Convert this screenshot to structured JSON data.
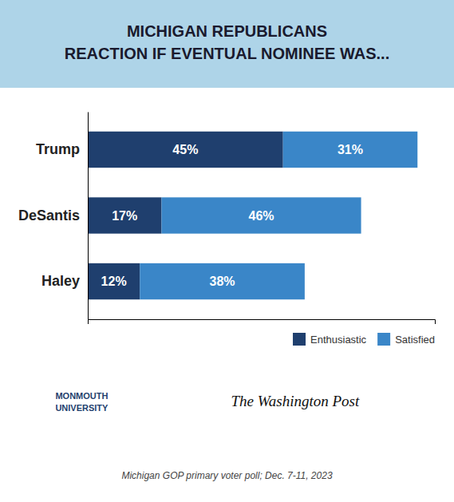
{
  "chart_data": {
    "type": "bar",
    "orientation": "horizontal",
    "stacked": true,
    "title": "MICHIGAN REPUBLICANS\nREACTION IF EVENTUAL NOMINEE WAS...",
    "categories": [
      "Trump",
      "DeSantis",
      "Haley"
    ],
    "series": [
      {
        "name": "Enthusiastic",
        "color": "#1F3F6E",
        "values": [
          45,
          17,
          12
        ],
        "value_labels": [
          "45%",
          "17%",
          "12%"
        ]
      },
      {
        "name": "Satisfied",
        "color": "#3A86C8",
        "values": [
          31,
          46,
          38
        ],
        "value_labels": [
          "31%",
          "46%",
          "38%"
        ]
      }
    ],
    "xlim": [
      0,
      80
    ],
    "xticks": [],
    "tick_labels": "y",
    "data_labels": true,
    "legend": "bottom-right",
    "annotations": [
      "Michigan GOP primary voter poll;  Dec. 7-11, 2023",
      "MONMOUTH\nUNIVERSITY",
      "The Washington Post"
    ]
  }
}
